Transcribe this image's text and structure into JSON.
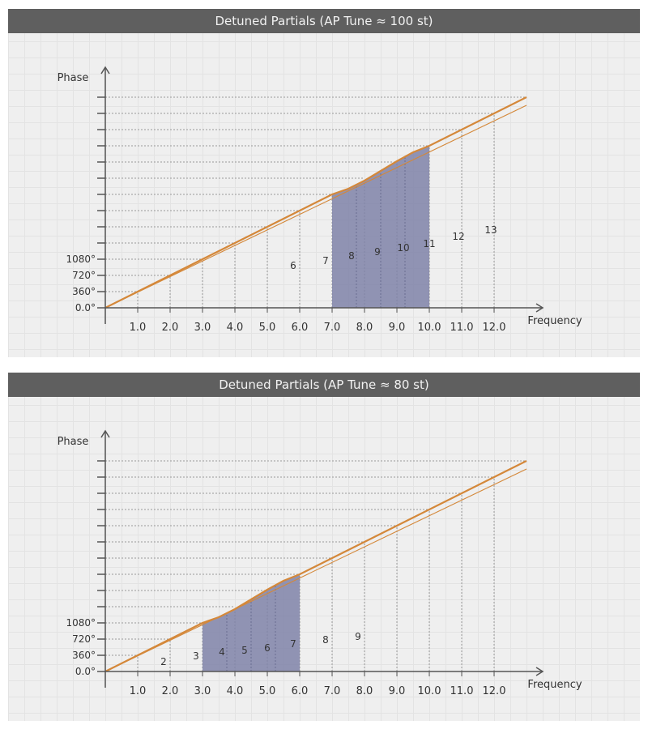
{
  "colors": {
    "line": "#d4883a",
    "fill": "#7f83a8",
    "grid": "#9a9a9a",
    "axis": "#555555",
    "title_bg": "#5f5f5f"
  },
  "chart_data": [
    {
      "type": "line",
      "title": "Detuned Partials (AP Tune ≈ 100 st)",
      "xlabel": "Frequency",
      "ylabel": "Phase",
      "xticks": [
        "1.0",
        "2.0",
        "3.0",
        "4.0",
        "5.0",
        "6.0",
        "7.0",
        "8.0",
        "9.0",
        "10.0",
        "11.0",
        "12.0"
      ],
      "ytick_labels": [
        "0.0°",
        "360°",
        "720°",
        "1080°"
      ],
      "xlim": [
        0,
        13
      ],
      "series": [
        {
          "x": [
            0,
            7,
            7.5,
            8,
            8.5,
            9,
            9.5,
            10,
            13
          ],
          "y": [
            0,
            7,
            7.35,
            7.85,
            8.45,
            9.05,
            9.6,
            10,
            13
          ]
        },
        {
          "x": [
            0,
            13
          ],
          "y": [
            0,
            12.5
          ]
        }
      ],
      "shaded_region": [
        7,
        10
      ],
      "partials": [
        {
          "label": "6",
          "x": 5.8,
          "y": 2.6
        },
        {
          "label": "7",
          "x": 6.8,
          "y": 2.9
        },
        {
          "label": "8",
          "x": 7.6,
          "y": 3.2
        },
        {
          "label": "9",
          "x": 8.4,
          "y": 3.45
        },
        {
          "label": "10",
          "x": 9.2,
          "y": 3.7
        },
        {
          "label": "11",
          "x": 10.0,
          "y": 3.95
        },
        {
          "label": "12",
          "x": 10.9,
          "y": 4.4
        },
        {
          "label": "13",
          "x": 11.9,
          "y": 4.8
        }
      ]
    },
    {
      "type": "line",
      "title": "Detuned Partials (AP Tune ≈ 80 st)",
      "xlabel": "Frequency",
      "ylabel": "Phase",
      "xticks": [
        "1.0",
        "2.0",
        "3.0",
        "4.0",
        "5.0",
        "6.0",
        "7.0",
        "8.0",
        "9.0",
        "10.0",
        "11.0",
        "12.0"
      ],
      "ytick_labels": [
        "0.0°",
        "360°",
        "720°",
        "1080°"
      ],
      "xlim": [
        0,
        13
      ],
      "series": [
        {
          "x": [
            0,
            3,
            3.5,
            4,
            4.5,
            5,
            5.5,
            6,
            13
          ],
          "y": [
            0,
            3,
            3.35,
            3.85,
            4.45,
            5.05,
            5.6,
            6,
            13
          ]
        },
        {
          "x": [
            0,
            13
          ],
          "y": [
            0,
            12.5
          ]
        }
      ],
      "shaded_region": [
        3,
        6
      ],
      "partials": [
        {
          "label": "2",
          "x": 1.8,
          "y": 0.6
        },
        {
          "label": "3",
          "x": 2.8,
          "y": 0.95
        },
        {
          "label": "4",
          "x": 3.6,
          "y": 1.2
        },
        {
          "label": "5",
          "x": 4.3,
          "y": 1.3
        },
        {
          "label": "6",
          "x": 5.0,
          "y": 1.45
        },
        {
          "label": "7",
          "x": 5.8,
          "y": 1.7
        },
        {
          "label": "8",
          "x": 6.8,
          "y": 1.95
        },
        {
          "label": "9",
          "x": 7.8,
          "y": 2.15
        }
      ]
    }
  ]
}
